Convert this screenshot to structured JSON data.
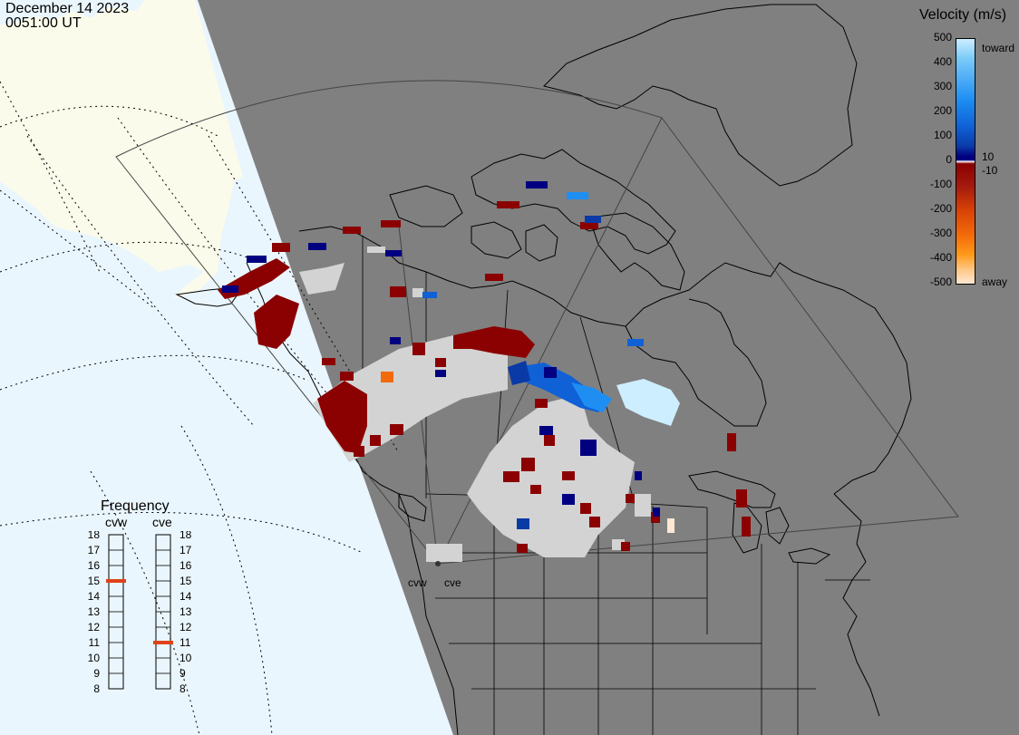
{
  "header": {
    "date": "December 14 2023",
    "time": "0051:00 UT"
  },
  "velocity_legend": {
    "title": "Velocity (m/s)",
    "tick_labels": [
      "500",
      "400",
      "300",
      "200",
      "100",
      "0",
      "-100",
      "-200",
      "-300",
      "-400",
      "-500"
    ],
    "near_zero_labels": [
      "10",
      "-10"
    ],
    "toward_label": "toward",
    "away_label": "away",
    "colors": [
      "#fde8d4",
      "#ffc784",
      "#ff9a1a",
      "#f36a0a",
      "#d84206",
      "#a41a0e",
      "#8b0000",
      "#000080",
      "#0a3aa6",
      "#1060d6",
      "#1e8ef2",
      "#7ccbf8",
      "#cfeeff"
    ]
  },
  "frequency_legend": {
    "title": "Frequency",
    "radars": [
      {
        "name": "cvw",
        "value_mhz": 15,
        "marker_color": "#e0421a"
      },
      {
        "name": "cve",
        "value_mhz": 11,
        "marker_color": "#e0421a"
      }
    ],
    "scale": [
      "18",
      "17",
      "16",
      "15",
      "14",
      "13",
      "12",
      "11",
      "10",
      "9",
      "8"
    ]
  },
  "radar_sites": [
    "cvw",
    "cve"
  ],
  "colors": {
    "ocean_dayside": "#eaf6fd",
    "land_dayside": "#fbfbec",
    "nightside": "#808080",
    "ground_scatter": "#d3d3d3"
  }
}
